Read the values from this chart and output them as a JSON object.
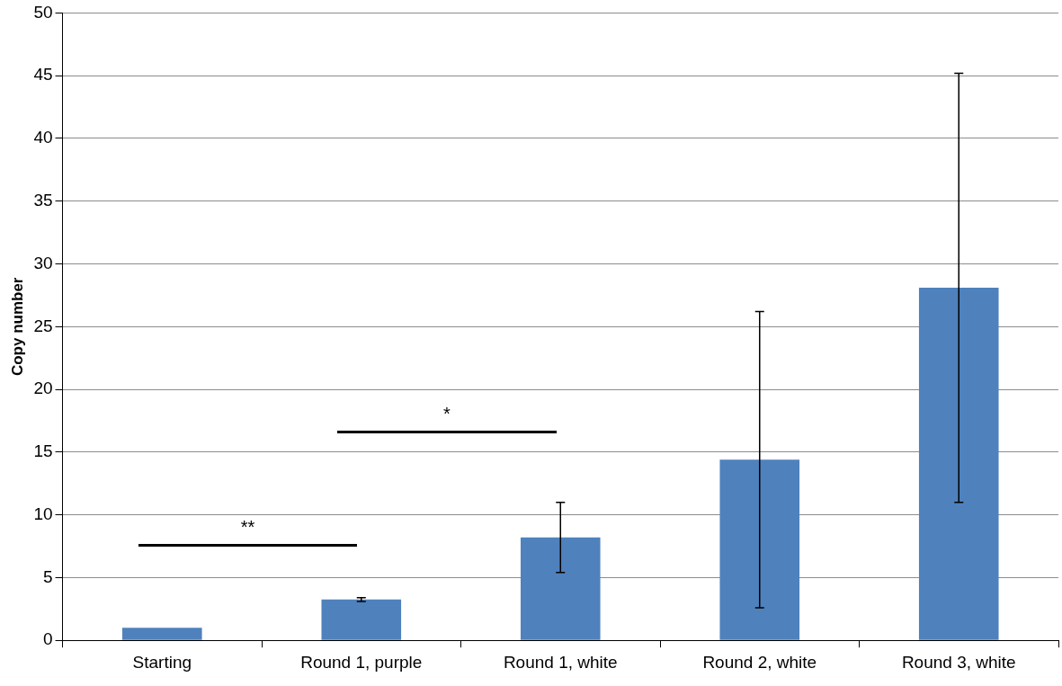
{
  "chart_data": {
    "type": "bar",
    "ylabel": "Copy number",
    "categories": [
      "Starting",
      "Round 1, purple",
      "Round 1, white",
      "Round 2, white",
      "Round 3, white"
    ],
    "values": [
      1.0,
      3.25,
      8.2,
      14.4,
      28.1
    ],
    "errors": [
      null,
      0.15,
      2.8,
      11.8,
      17.1
    ],
    "color": "#4f81bd",
    "ylim": [
      0,
      50
    ],
    "yticks": [
      0,
      5,
      10,
      15,
      20,
      25,
      30,
      35,
      40,
      45,
      50
    ],
    "grid": "y",
    "annotations": [
      "**",
      "*"
    ]
  }
}
